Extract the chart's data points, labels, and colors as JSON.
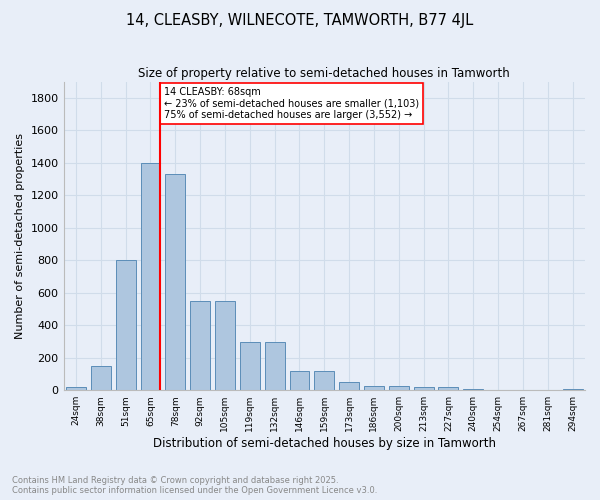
{
  "title": "14, CLEASBY, WILNECOTE, TAMWORTH, B77 4JL",
  "subtitle": "Size of property relative to semi-detached houses in Tamworth",
  "xlabel": "Distribution of semi-detached houses by size in Tamworth",
  "ylabel": "Number of semi-detached properties",
  "footnote1": "Contains HM Land Registry data © Crown copyright and database right 2025.",
  "footnote2": "Contains public sector information licensed under the Open Government Licence v3.0.",
  "bar_heights": [
    20,
    150,
    800,
    1400,
    1330,
    550,
    550,
    295,
    295,
    120,
    120,
    50,
    25,
    25,
    20,
    20,
    10,
    0,
    0,
    0,
    10
  ],
  "tick_labels": [
    "24sqm",
    "38sqm",
    "51sqm",
    "65sqm",
    "78sqm",
    "92sqm",
    "105sqm",
    "119sqm",
    "132sqm",
    "146sqm",
    "159sqm",
    "173sqm",
    "186sqm",
    "200sqm",
    "213sqm",
    "227sqm",
    "240sqm",
    "254sqm",
    "267sqm",
    "281sqm",
    "294sqm"
  ],
  "bar_color": "#aec6df",
  "bar_edge_color": "#5b8db8",
  "grid_color": "#d0dcea",
  "background_color": "#e8eef8",
  "vline_color": "red",
  "vline_bar_index": 3,
  "annotation_text": "14 CLEASBY: 68sqm\n← 23% of semi-detached houses are smaller (1,103)\n75% of semi-detached houses are larger (3,552) →",
  "annotation_box_color": "white",
  "annotation_box_edge": "red",
  "ylim": [
    0,
    1900
  ],
  "yticks": [
    0,
    200,
    400,
    600,
    800,
    1000,
    1200,
    1400,
    1600,
    1800
  ]
}
